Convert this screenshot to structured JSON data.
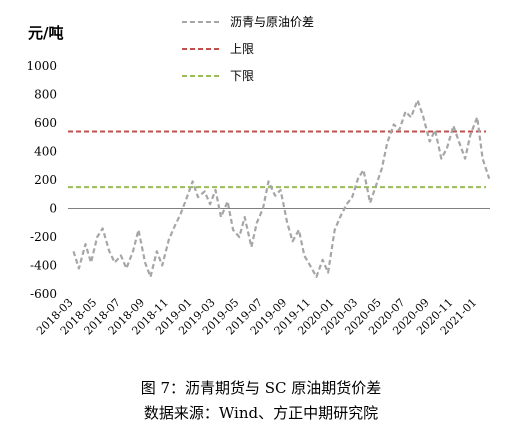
{
  "chart_data": {
    "type": "line",
    "unit_label": "元/吨",
    "y_ticks": [
      1000,
      800,
      600,
      400,
      200,
      0,
      -200,
      -400,
      -600
    ],
    "ylim": [
      -600,
      1000
    ],
    "x_ticks": [
      "2018-03",
      "2018-05",
      "2018-07",
      "2018-09",
      "2018-11",
      "2019-01",
      "2019-03",
      "2019-05",
      "2019-07",
      "2019-09",
      "2019-11",
      "2020-01",
      "2020-03",
      "2020-05",
      "2020-07",
      "2020-09",
      "2020-11",
      "2021-01"
    ],
    "legend": [
      {
        "name": "沥青与原油价差",
        "color": "#A6A6A6",
        "style": "dashed"
      },
      {
        "name": "上限",
        "color": "#C0504D",
        "style": "dashed"
      },
      {
        "name": "下限",
        "color": "#9BBB59",
        "style": "dashed"
      }
    ],
    "reference_lines": [
      {
        "name": "上限",
        "value": 540,
        "color": "#C0504D"
      },
      {
        "name": "下限",
        "value": 150,
        "color": "#9BBB59"
      }
    ],
    "series": [
      {
        "name": "沥青与原油价差",
        "color": "#A6A6A6",
        "x": [
          "2018-03-01",
          "2018-03-15",
          "2018-04-01",
          "2018-04-15",
          "2018-05-01",
          "2018-05-15",
          "2018-06-01",
          "2018-06-15",
          "2018-07-01",
          "2018-07-15",
          "2018-08-01",
          "2018-08-15",
          "2018-09-01",
          "2018-09-15",
          "2018-10-01",
          "2018-10-15",
          "2018-11-01",
          "2018-11-15",
          "2018-12-01",
          "2018-12-15",
          "2019-01-01",
          "2019-01-15",
          "2019-02-01",
          "2019-02-15",
          "2019-03-01",
          "2019-03-15",
          "2019-04-01",
          "2019-04-15",
          "2019-05-01",
          "2019-05-15",
          "2019-06-01",
          "2019-06-15",
          "2019-07-01",
          "2019-07-15",
          "2019-08-01",
          "2019-08-15",
          "2019-09-01",
          "2019-09-15",
          "2019-10-01",
          "2019-10-15",
          "2019-11-01",
          "2019-11-15",
          "2019-12-01",
          "2019-12-15",
          "2020-01-01",
          "2020-01-15",
          "2020-02-01",
          "2020-02-15",
          "2020-03-01",
          "2020-03-15",
          "2020-04-01",
          "2020-04-15",
          "2020-05-01",
          "2020-05-15",
          "2020-06-01",
          "2020-06-15",
          "2020-07-01",
          "2020-07-15",
          "2020-08-01",
          "2020-08-15",
          "2020-09-01",
          "2020-09-15",
          "2020-10-01",
          "2020-10-15",
          "2020-11-01",
          "2020-11-15",
          "2020-12-01",
          "2020-12-15",
          "2021-01-01",
          "2021-01-15",
          "2021-02-01"
        ],
        "y": [
          -300,
          -420,
          -250,
          -380,
          -200,
          -140,
          -300,
          -380,
          -330,
          -420,
          -300,
          -150,
          -380,
          -480,
          -300,
          -400,
          -220,
          -130,
          -40,
          60,
          190,
          80,
          120,
          30,
          130,
          -60,
          50,
          -150,
          -200,
          -60,
          -270,
          -100,
          0,
          190,
          90,
          130,
          -100,
          -230,
          -150,
          -330,
          -410,
          -480,
          -360,
          -450,
          -150,
          -60,
          30,
          80,
          210,
          270,
          40,
          150,
          280,
          460,
          590,
          550,
          680,
          640,
          760,
          650,
          470,
          550,
          350,
          420,
          580,
          470,
          350,
          520,
          640,
          350,
          210
        ]
      }
    ]
  },
  "caption": {
    "line1": "图 7：沥青期货与 SC 原油期货价差",
    "line2": "数据来源：Wind、方正中期研究院"
  }
}
